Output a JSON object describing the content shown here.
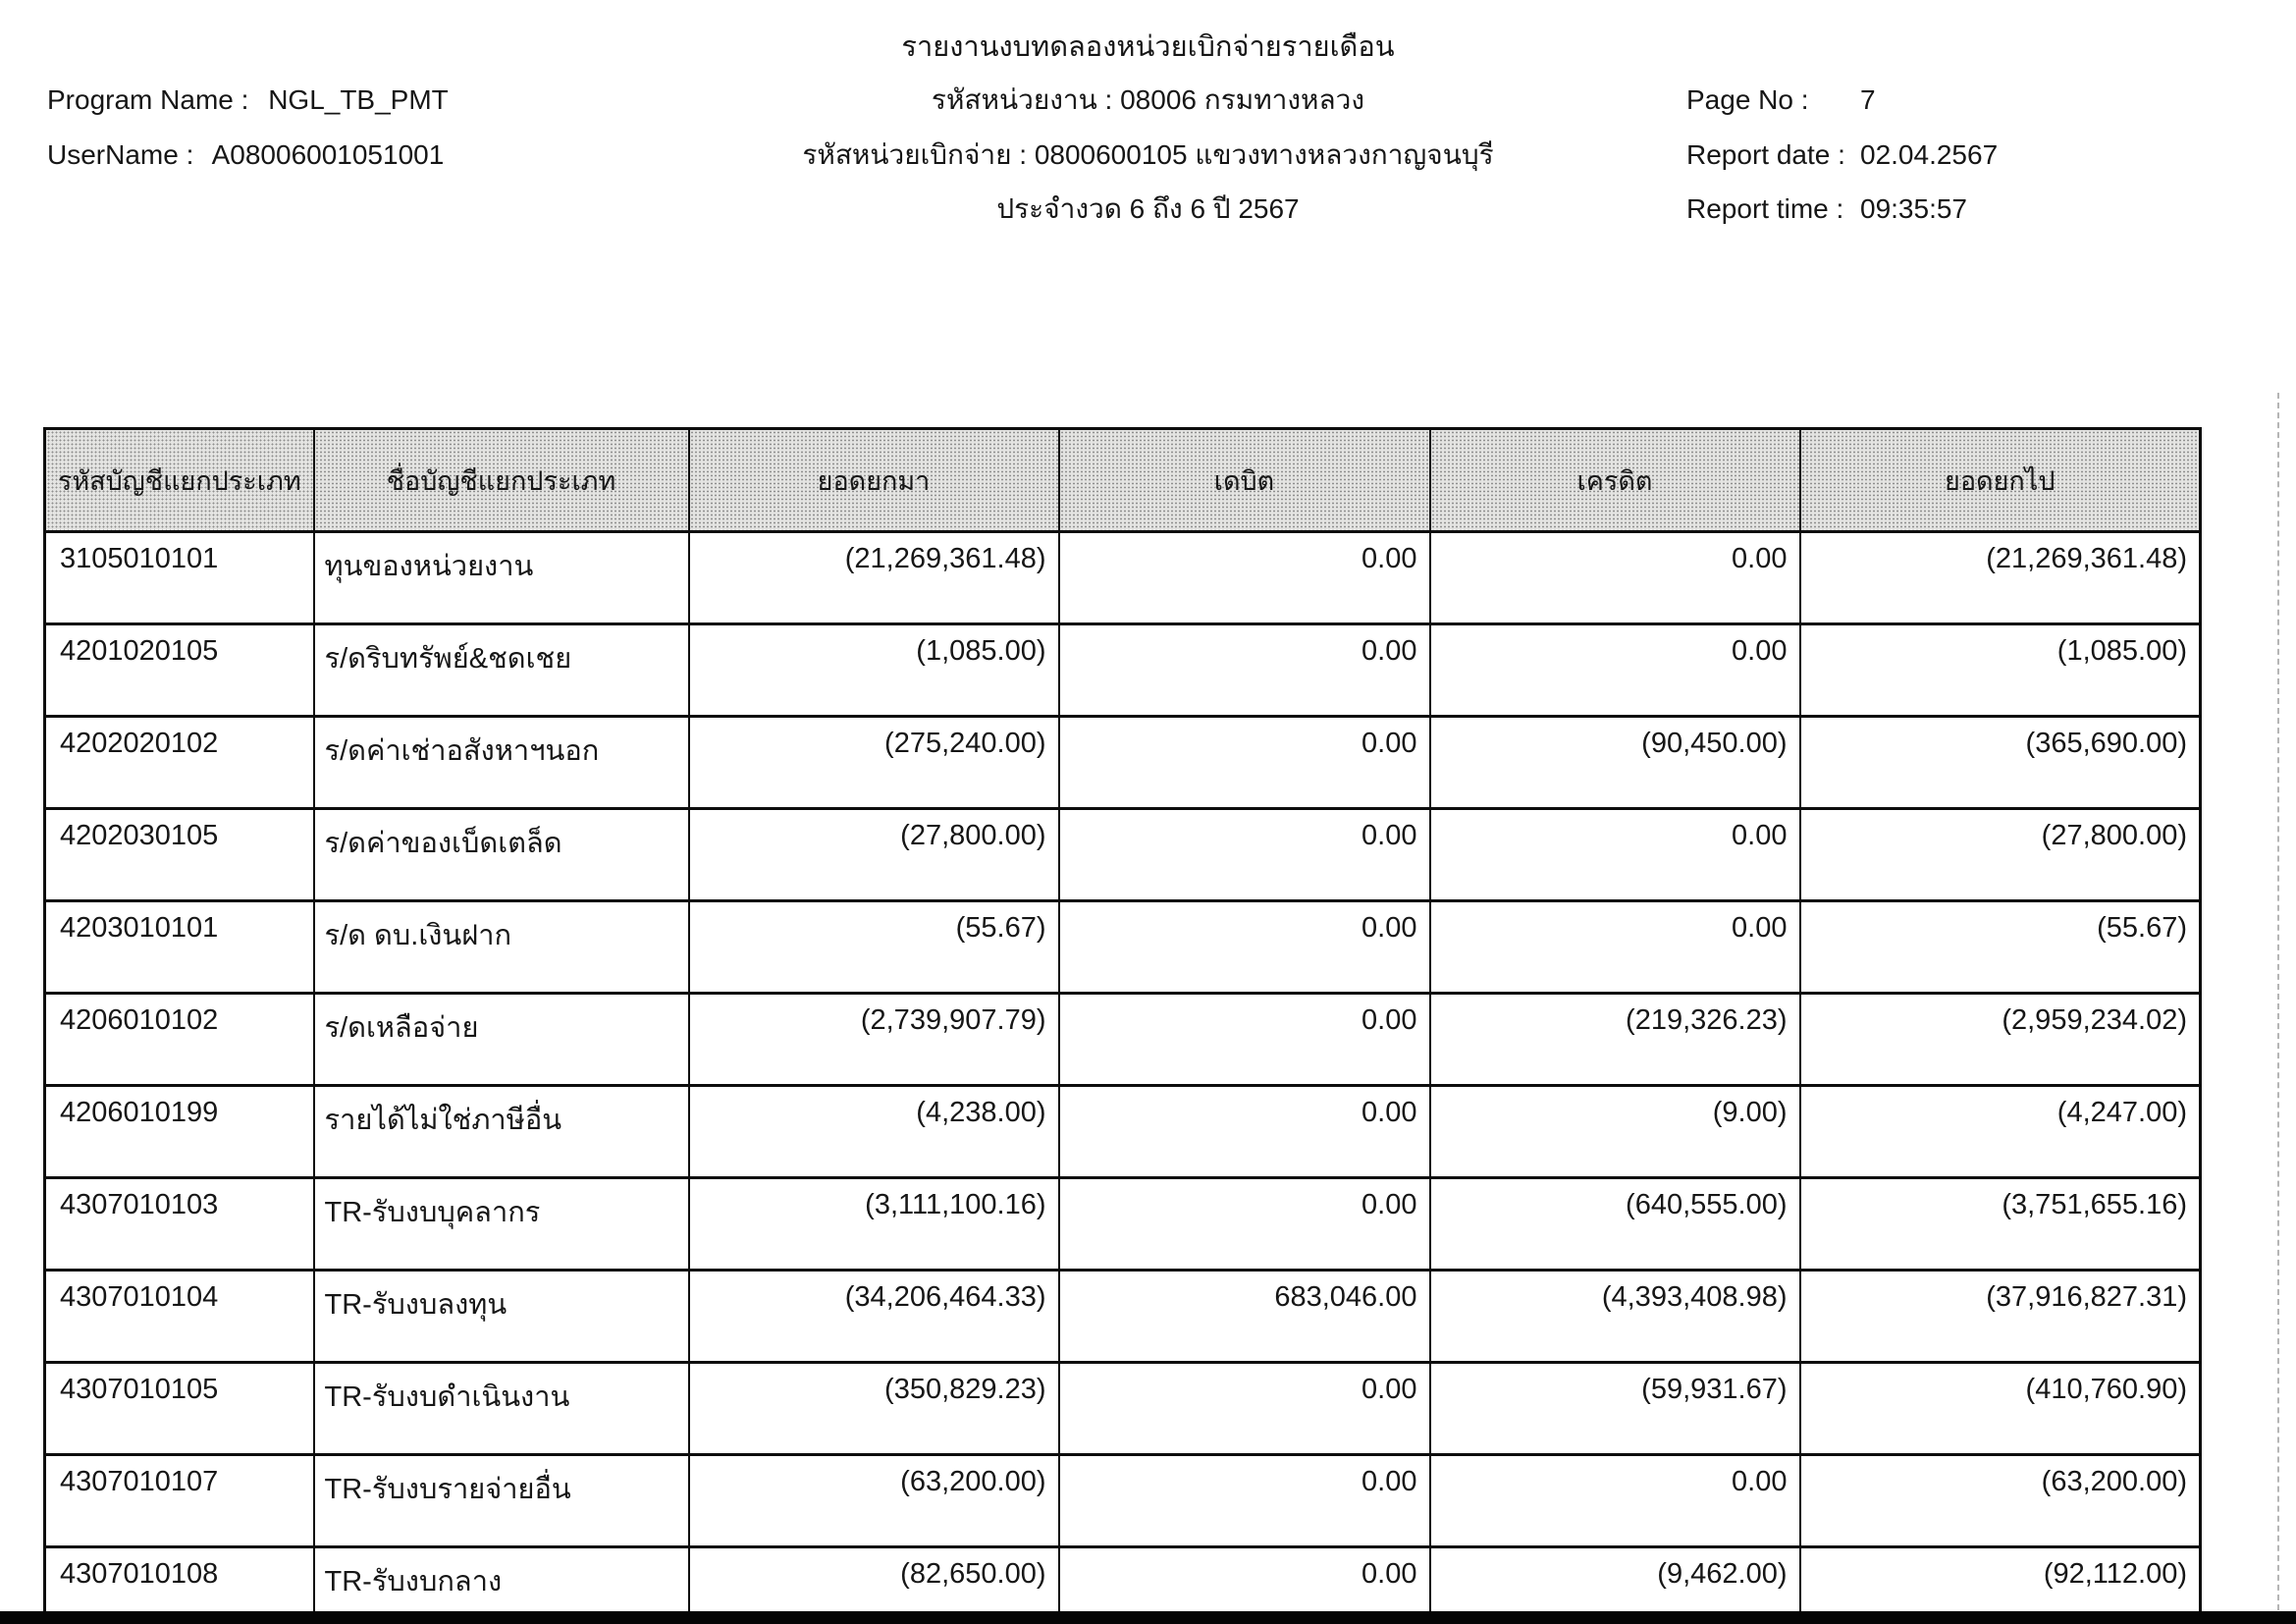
{
  "colors": {
    "ink": "#161616",
    "table_border": "#0d0d0d",
    "header_fill": "#e4e4e2"
  },
  "report": {
    "title": "รายงานงบทดลองหน่วยเบิกจ่ายรายเดือน",
    "program_name_label": "Program Name :",
    "program_name": "NGL_TB_PMT",
    "username_label": "UserName :",
    "username": "A08006001051001",
    "agency_label": "รหัสหน่วยงาน :",
    "agency_value": "08006 กรมทางหลวง",
    "disbursement_unit_label": "รหัสหน่วยเบิกจ่าย :",
    "disbursement_unit_value": "0800600105 แขวงทางหลวงกาญจนบุรี",
    "period": "ประจำงวด 6 ถึง 6 ปี 2567",
    "page_no_label": "Page No :",
    "page_no": "7",
    "report_date_label": "Report date :",
    "report_date": "02.04.2567",
    "report_time_label": "Report time :",
    "report_time": "09:35:57"
  },
  "table": {
    "columns": [
      "รหัสบัญชีแยกประเภท",
      "ชื่อบัญชีแยกประเภท",
      "ยอดยกมา",
      "เดบิต",
      "เครดิต",
      "ยอดยกไป"
    ],
    "rows": [
      [
        "3105010101",
        "ทุนของหน่วยงาน",
        "(21,269,361.48)",
        "0.00",
        "0.00",
        "(21,269,361.48)"
      ],
      [
        "4201020105",
        "ร/ดริบทรัพย์&ชดเชย",
        "(1,085.00)",
        "0.00",
        "0.00",
        "(1,085.00)"
      ],
      [
        "4202020102",
        "ร/ดค่าเช่าอสังหาฯนอก",
        "(275,240.00)",
        "0.00",
        "(90,450.00)",
        "(365,690.00)"
      ],
      [
        "4202030105",
        "ร/ดค่าของเบ็ดเตล็ด",
        "(27,800.00)",
        "0.00",
        "0.00",
        "(27,800.00)"
      ],
      [
        "4203010101",
        "ร/ด ดบ.เงินฝาก",
        "(55.67)",
        "0.00",
        "0.00",
        "(55.67)"
      ],
      [
        "4206010102",
        "ร/ดเหลือจ่าย",
        "(2,739,907.79)",
        "0.00",
        "(219,326.23)",
        "(2,959,234.02)"
      ],
      [
        "4206010199",
        "รายได้ไม่ใช่ภาษีอื่น",
        "(4,238.00)",
        "0.00",
        "(9.00)",
        "(4,247.00)"
      ],
      [
        "4307010103",
        "TR-รับงบบุคลากร",
        "(3,111,100.16)",
        "0.00",
        "(640,555.00)",
        "(3,751,655.16)"
      ],
      [
        "4307010104",
        "TR-รับงบลงทุน",
        "(34,206,464.33)",
        "683,046.00",
        "(4,393,408.98)",
        "(37,916,827.31)"
      ],
      [
        "4307010105",
        "TR-รับงบดำเนินงาน",
        "(350,829.23)",
        "0.00",
        "(59,931.67)",
        "(410,760.90)"
      ],
      [
        "4307010107",
        "TR-รับงบรายจ่ายอื่น",
        "(63,200.00)",
        "0.00",
        "0.00",
        "(63,200.00)"
      ],
      [
        "4307010108",
        "TR-รับงบกลาง",
        "(82,650.00)",
        "0.00",
        "(9,462.00)",
        "(92,112.00)"
      ]
    ]
  }
}
